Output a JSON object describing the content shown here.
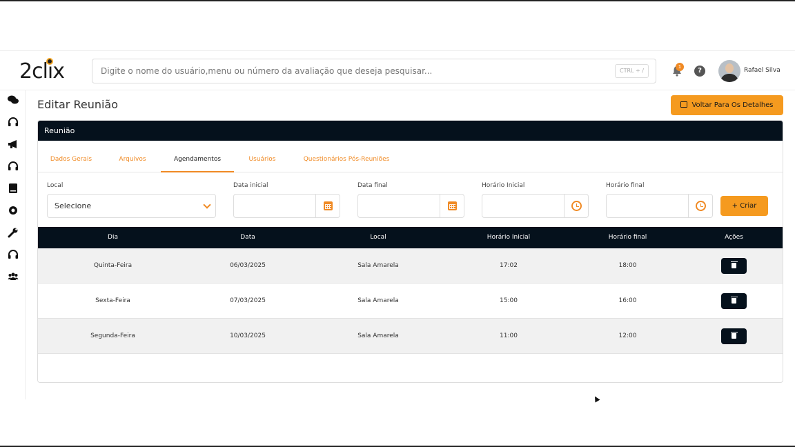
{
  "header": {
    "logo_text": "2clix",
    "search_placeholder": "Digite o nome do usuário,menu ou número da avaliação que deseja pesquisar...",
    "search_shortcut": "CTRL + /",
    "notification_count": "1",
    "help_label": "?",
    "user_name": "Rafael Silva"
  },
  "sidebar": {
    "icons": [
      "chat-icon",
      "headset-icon",
      "megaphone-icon",
      "headset-icon",
      "book-icon",
      "gear-icon",
      "wrench-icon",
      "headset-icon",
      "users-icon"
    ]
  },
  "page": {
    "title": "Editar Reunião",
    "back_button": "Voltar Para Os Detalhes"
  },
  "card": {
    "title": "Reunião",
    "tabs": [
      {
        "label": "Dados Gerais",
        "active": false
      },
      {
        "label": "Arquivos",
        "active": false
      },
      {
        "label": "Agendamentos",
        "active": true
      },
      {
        "label": "Usuários",
        "active": false
      },
      {
        "label": "Questionários Pós-Reuniões",
        "active": false
      }
    ]
  },
  "form": {
    "local_label": "Local",
    "local_value": "Selecione",
    "data_inicial_label": "Data inicial",
    "data_final_label": "Data final",
    "horario_inicial_label": "Horário Inicial",
    "horario_final_label": "Horário final",
    "create_button": "Criar"
  },
  "table": {
    "headers": [
      "Dia",
      "Data",
      "Local",
      "Horário Inicial",
      "Horário final",
      "Ações"
    ],
    "rows": [
      {
        "dia": "Quinta-Feira",
        "data": "06/03/2025",
        "local": "Sala Amarela",
        "inicio": "17:02",
        "fim": "18:00"
      },
      {
        "dia": "Sexta-Feira",
        "data": "07/03/2025",
        "local": "Sala Amarela",
        "inicio": "15:00",
        "fim": "16:00"
      },
      {
        "dia": "Segunda-Feira",
        "data": "10/03/2025",
        "local": "Sala Amarela",
        "inicio": "11:00",
        "fim": "12:00"
      }
    ]
  },
  "colors": {
    "accent": "#f59a1f",
    "dark": "#05111c",
    "row_alt": "#f1f1f1"
  }
}
